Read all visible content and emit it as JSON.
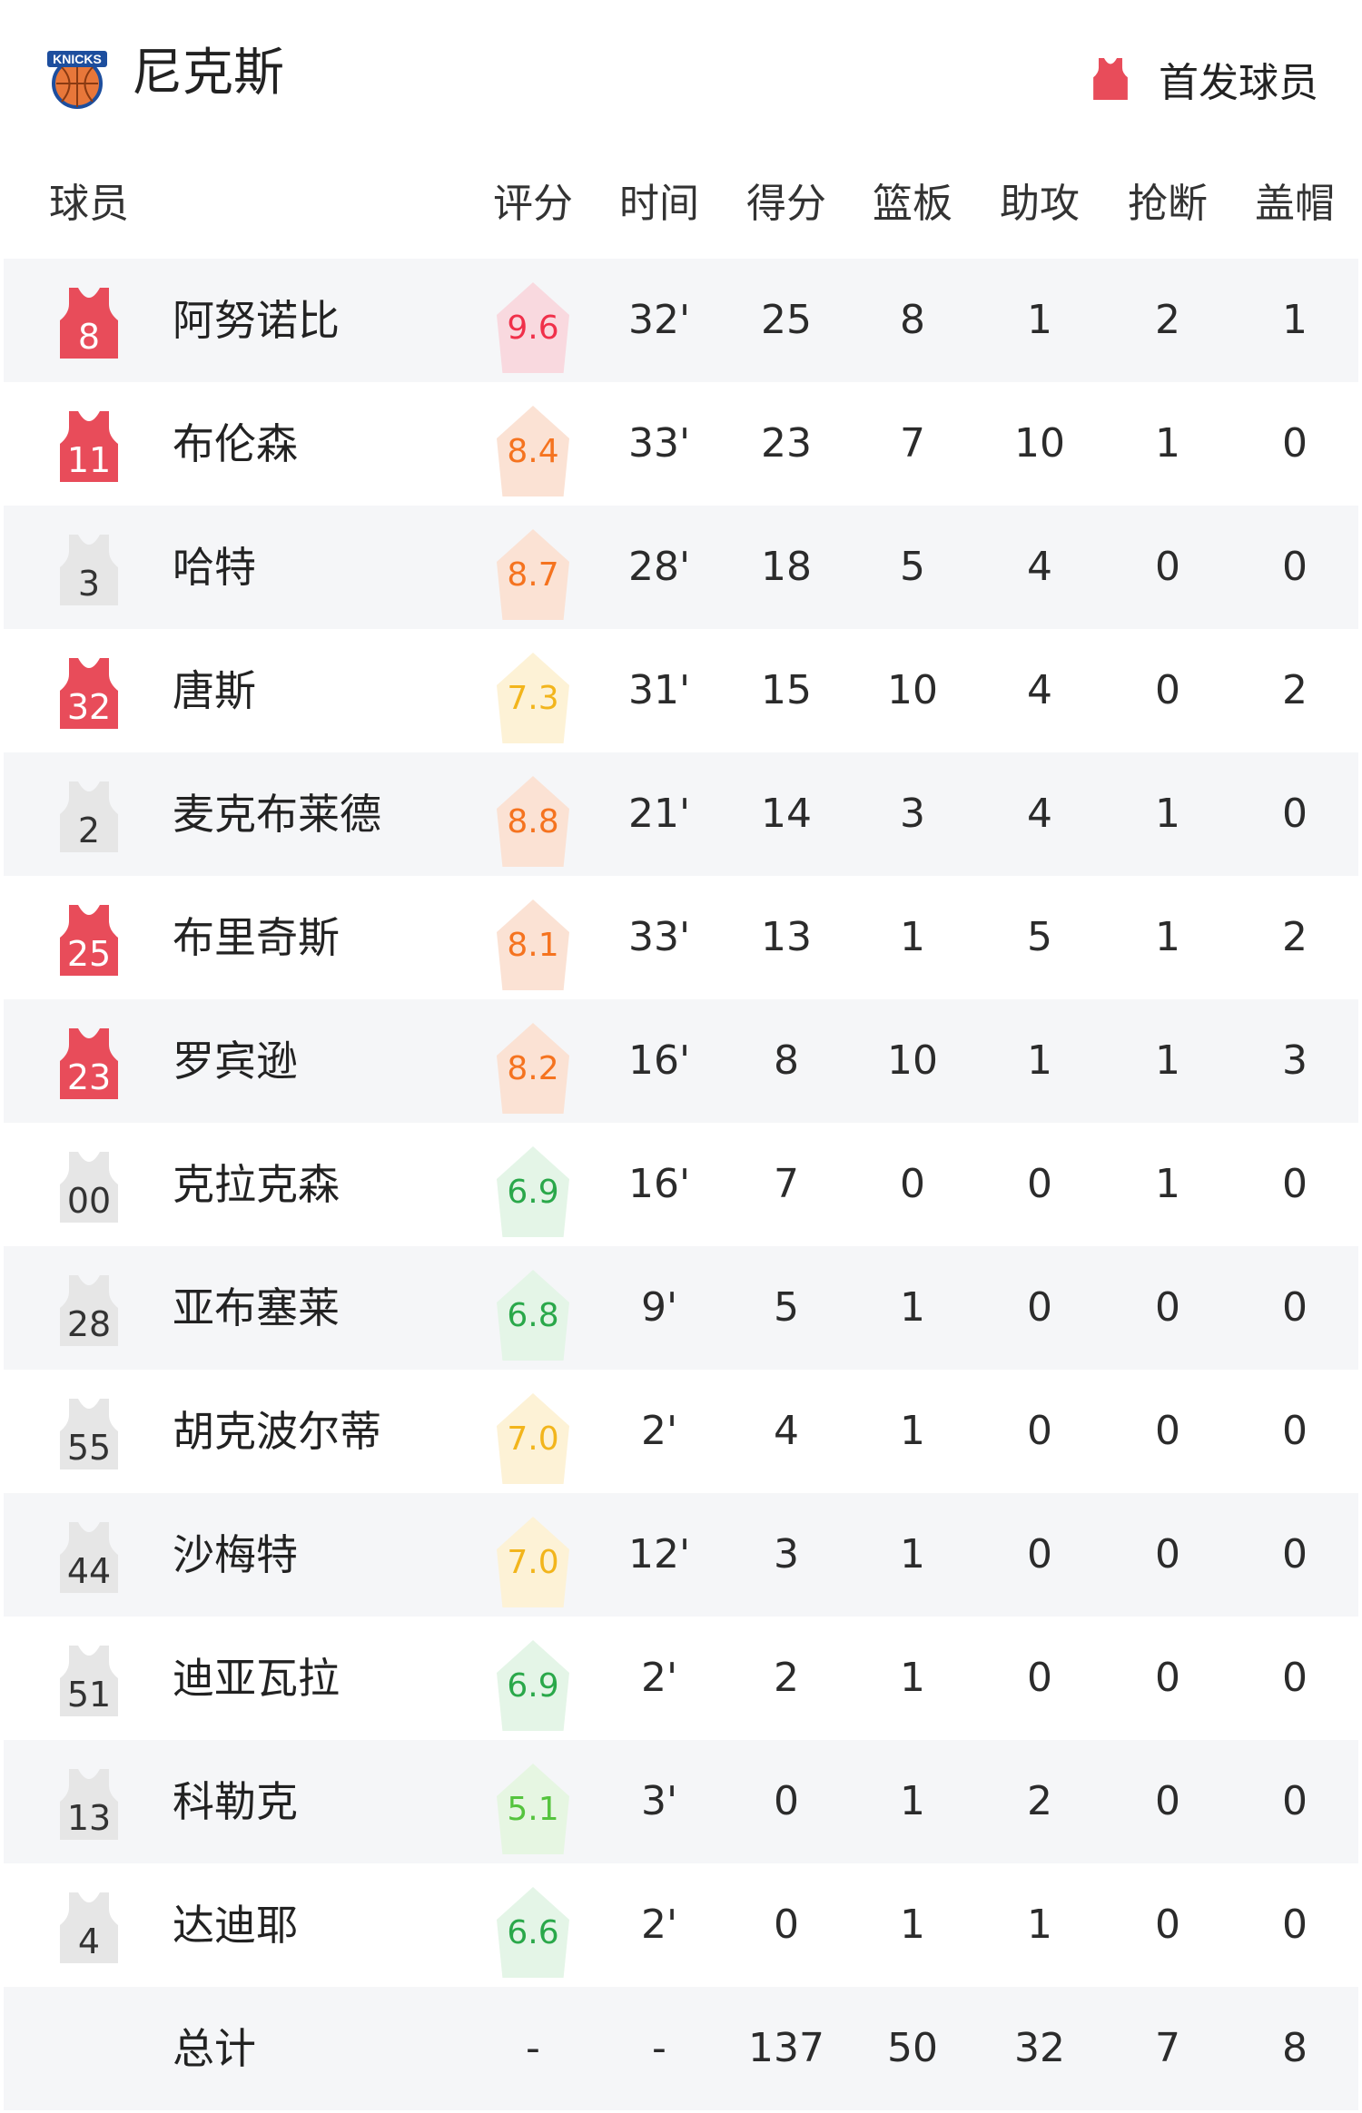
{
  "team": {
    "name": "尼克斯",
    "logo_text": "KNICKS",
    "logo_icon": "knicks-basketball-logo"
  },
  "legend": {
    "label": "首发球员",
    "icon": "jersey-icon",
    "color": "#e84c5a"
  },
  "columns": {
    "player": "球员",
    "rating": "评分",
    "time": "时间",
    "points": "得分",
    "rebounds": "篮板",
    "assists": "助攻",
    "steals": "抢断",
    "blocks": "盖帽"
  },
  "colors": {
    "starter_jersey": "#e84c5a",
    "bench_jersey": "#e6e6e6",
    "row_alt": "#f5f6f8"
  },
  "rating_styles": {
    "red": {
      "text": "#f0304a",
      "bg": "#f9d9df"
    },
    "orange": {
      "text": "#f5731f",
      "bg": "#fbe2d4"
    },
    "yellow": {
      "text": "#f2b51c",
      "bg": "#fdf2d6"
    },
    "green": {
      "text": "#2aa84a",
      "bg": "#e4f5e7"
    },
    "lightgreen": {
      "text": "#55c43e",
      "bg": "#e6f6e2"
    }
  },
  "players": [
    {
      "number": "8",
      "name": "阿努诺比",
      "starter": true,
      "rating": "9.6",
      "rating_style": "red",
      "time": "32'",
      "points": "25",
      "rebounds": "8",
      "assists": "1",
      "steals": "2",
      "blocks": "1"
    },
    {
      "number": "11",
      "name": "布伦森",
      "starter": true,
      "rating": "8.4",
      "rating_style": "orange",
      "time": "33'",
      "points": "23",
      "rebounds": "7",
      "assists": "10",
      "steals": "1",
      "blocks": "0"
    },
    {
      "number": "3",
      "name": "哈特",
      "starter": false,
      "rating": "8.7",
      "rating_style": "orange",
      "time": "28'",
      "points": "18",
      "rebounds": "5",
      "assists": "4",
      "steals": "0",
      "blocks": "0"
    },
    {
      "number": "32",
      "name": "唐斯",
      "starter": true,
      "rating": "7.3",
      "rating_style": "yellow",
      "time": "31'",
      "points": "15",
      "rebounds": "10",
      "assists": "4",
      "steals": "0",
      "blocks": "2"
    },
    {
      "number": "2",
      "name": "麦克布莱德",
      "starter": false,
      "rating": "8.8",
      "rating_style": "orange",
      "time": "21'",
      "points": "14",
      "rebounds": "3",
      "assists": "4",
      "steals": "1",
      "blocks": "0"
    },
    {
      "number": "25",
      "name": "布里奇斯",
      "starter": true,
      "rating": "8.1",
      "rating_style": "orange",
      "time": "33'",
      "points": "13",
      "rebounds": "1",
      "assists": "5",
      "steals": "1",
      "blocks": "2"
    },
    {
      "number": "23",
      "name": "罗宾逊",
      "starter": true,
      "rating": "8.2",
      "rating_style": "orange",
      "time": "16'",
      "points": "8",
      "rebounds": "10",
      "assists": "1",
      "steals": "1",
      "blocks": "3"
    },
    {
      "number": "00",
      "name": "克拉克森",
      "starter": false,
      "rating": "6.9",
      "rating_style": "green",
      "time": "16'",
      "points": "7",
      "rebounds": "0",
      "assists": "0",
      "steals": "1",
      "blocks": "0"
    },
    {
      "number": "28",
      "name": "亚布塞莱",
      "starter": false,
      "rating": "6.8",
      "rating_style": "green",
      "time": "9'",
      "points": "5",
      "rebounds": "1",
      "assists": "0",
      "steals": "0",
      "blocks": "0"
    },
    {
      "number": "55",
      "name": "胡克波尔蒂",
      "starter": false,
      "rating": "7.0",
      "rating_style": "yellow",
      "time": "2'",
      "points": "4",
      "rebounds": "1",
      "assists": "0",
      "steals": "0",
      "blocks": "0"
    },
    {
      "number": "44",
      "name": "沙梅特",
      "starter": false,
      "rating": "7.0",
      "rating_style": "yellow",
      "time": "12'",
      "points": "3",
      "rebounds": "1",
      "assists": "0",
      "steals": "0",
      "blocks": "0"
    },
    {
      "number": "51",
      "name": "迪亚瓦拉",
      "starter": false,
      "rating": "6.9",
      "rating_style": "green",
      "time": "2'",
      "points": "2",
      "rebounds": "1",
      "assists": "0",
      "steals": "0",
      "blocks": "0"
    },
    {
      "number": "13",
      "name": "科勒克",
      "starter": false,
      "rating": "5.1",
      "rating_style": "lightgreen",
      "time": "3'",
      "points": "0",
      "rebounds": "1",
      "assists": "2",
      "steals": "0",
      "blocks": "0"
    },
    {
      "number": "4",
      "name": "达迪耶",
      "starter": false,
      "rating": "6.6",
      "rating_style": "green",
      "time": "2'",
      "points": "0",
      "rebounds": "1",
      "assists": "1",
      "steals": "0",
      "blocks": "0"
    }
  ],
  "totals": {
    "label": "总计",
    "rating": "-",
    "time": "-",
    "points": "137",
    "rebounds": "50",
    "assists": "32",
    "steals": "7",
    "blocks": "8"
  }
}
